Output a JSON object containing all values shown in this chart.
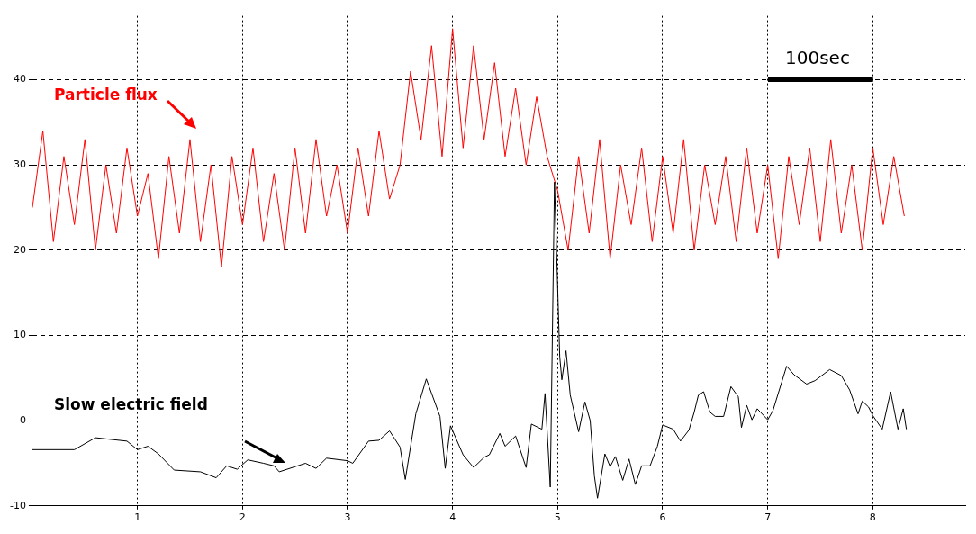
{
  "chart_data": {
    "type": "line",
    "annotations": [
      "100sec"
    ],
    "xlim": [
      0,
      8.88
    ],
    "ylim": [
      -10,
      47.5
    ],
    "xticks": [
      1,
      2,
      3,
      4,
      5,
      6,
      7,
      8
    ],
    "yticks": [
      -10,
      0,
      10,
      20,
      30,
      40
    ],
    "grid": true,
    "legend": false,
    "marker": "none",
    "line_style": "solid",
    "series": [
      {
        "name": "Particle flux",
        "color": "#ff0000",
        "x": [
          0,
          0.1,
          0.2,
          0.3,
          0.4,
          0.5,
          0.6,
          0.7,
          0.8,
          0.9,
          1,
          1.1,
          1.2,
          1.3,
          1.4,
          1.5,
          1.6,
          1.7,
          1.8,
          1.9,
          2,
          2.1,
          2.2,
          2.3,
          2.4,
          2.5,
          2.6,
          2.7,
          2.8,
          2.9,
          3,
          3.1,
          3.2,
          3.3,
          3.4,
          3.5,
          3.6,
          3.7,
          3.8,
          3.9,
          4,
          4.1,
          4.2,
          4.3,
          4.4,
          4.5,
          4.6,
          4.7,
          4.8,
          4.9,
          5,
          5.1,
          5.2,
          5.3,
          5.4,
          5.5,
          5.6,
          5.7,
          5.8,
          5.9,
          6,
          6.1,
          6.2,
          6.3,
          6.4,
          6.5,
          6.6,
          6.7,
          6.8,
          6.9,
          7,
          7.1,
          7.2,
          7.3,
          7.4,
          7.5,
          7.6,
          7.7,
          7.8,
          7.9,
          8,
          8.1,
          8.2,
          8.3
        ],
        "values": [
          25,
          34,
          21,
          31,
          23,
          33,
          20,
          30,
          22,
          32,
          24,
          29,
          19,
          31,
          22,
          33,
          21,
          30,
          18,
          31,
          23,
          32,
          21,
          29,
          20,
          32,
          22,
          33,
          24,
          30,
          22,
          32,
          24,
          34,
          26,
          30,
          41,
          33,
          44,
          31,
          46,
          32,
          44,
          33,
          42,
          31,
          39,
          30,
          38,
          31,
          27,
          20,
          31,
          22,
          33,
          19,
          30,
          23,
          32,
          21,
          31,
          22,
          33,
          20,
          30,
          23,
          31,
          21,
          32,
          22,
          30,
          19,
          31,
          23,
          32,
          21,
          33,
          22,
          30,
          20,
          32,
          23,
          31,
          24
        ]
      },
      {
        "name": "Slow electric field",
        "color": "#000000",
        "x": [
          0,
          0.4,
          0.6,
          0.9,
          1,
          1.1,
          1.2,
          1.35,
          1.6,
          1.75,
          1.85,
          1.95,
          2.05,
          2.2,
          2.3,
          2.35,
          2.6,
          2.7,
          2.8,
          3,
          3.05,
          3.2,
          3.3,
          3.4,
          3.5,
          3.55,
          3.65,
          3.75,
          3.88,
          3.93,
          3.98,
          4.1,
          4.2,
          4.3,
          4.35,
          4.45,
          4.5,
          4.6,
          4.7,
          4.75,
          4.85,
          4.88,
          4.93,
          4.97,
          5.02,
          5.04,
          5.08,
          5.12,
          5.2,
          5.26,
          5.31,
          5.35,
          5.38,
          5.45,
          5.5,
          5.55,
          5.62,
          5.68,
          5.74,
          5.8,
          5.88,
          5.95,
          6,
          6.1,
          6.17,
          6.25,
          6.3,
          6.34,
          6.39,
          6.45,
          6.5,
          6.58,
          6.65,
          6.72,
          6.75,
          6.8,
          6.85,
          6.9,
          7,
          7.05,
          7.18,
          7.25,
          7.37,
          7.45,
          7.59,
          7.7,
          7.78,
          7.86,
          7.9,
          7.96,
          8,
          8.09,
          8.17,
          8.2,
          8.24,
          8.29,
          8.32
        ],
        "values": [
          -3.4,
          -3.4,
          -2,
          -2.4,
          -3.4,
          -3,
          -3.9,
          -5.8,
          -6,
          -6.7,
          -5.3,
          -5.7,
          -4.6,
          -5,
          -5.3,
          -6,
          -5,
          -5.6,
          -4.4,
          -4.7,
          -5,
          -2.4,
          -2.3,
          -1.2,
          -3.1,
          -6.9,
          0.8,
          4.9,
          0.5,
          -5.6,
          -0.6,
          -4,
          -5.5,
          -4.3,
          -4,
          -1.5,
          -3,
          -1.8,
          -5.5,
          -0.4,
          -1,
          3.2,
          -7.8,
          28,
          7.5,
          4.8,
          8.2,
          3,
          -1.3,
          2.2,
          0,
          -6.5,
          -9.1,
          -3.9,
          -5.4,
          -4.2,
          -7,
          -4.5,
          -7.5,
          -5.3,
          -5.3,
          -3,
          -0.5,
          -1,
          -2.4,
          -1.1,
          1,
          3,
          3.4,
          1,
          0.5,
          0.5,
          4,
          2.8,
          -0.8,
          1.8,
          0.1,
          1.4,
          0.1,
          1.2,
          6.4,
          5.4,
          4.3,
          4.7,
          6,
          5.3,
          3.6,
          0.8,
          2.3,
          1.6,
          0.6,
          -1,
          3.4,
          1.5,
          -1,
          1.4,
          -1
        ]
      }
    ]
  }
}
